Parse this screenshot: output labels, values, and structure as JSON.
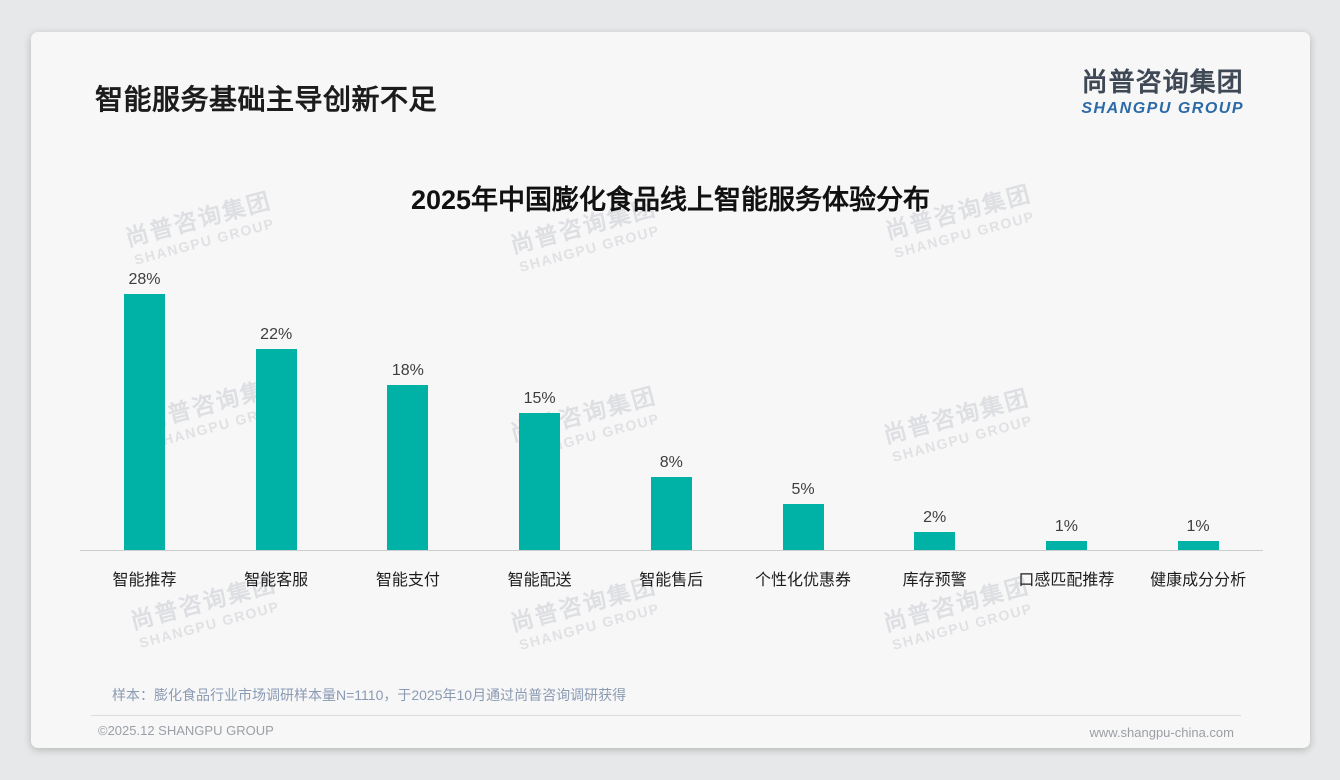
{
  "page": {
    "title": "智能服务基础主导创新不足",
    "logo": {
      "cn": "尚普咨询集团",
      "en": "SHANGPU GROUP"
    },
    "watermark": {
      "cn": "尚普咨询集团",
      "en": "SHANGPU GROUP"
    },
    "footer": {
      "note": "样本：膨化食品行业市场调研样本量N=1110，于2025年10月通过尚普咨询调研获得",
      "copyright": "©2025.12 SHANGPU GROUP",
      "website": "www.shangpu-china.com"
    },
    "colors": {
      "bar_teal": "#00b1a6",
      "logo_blue": "#2b6aa6",
      "note_blue_gray": "#8a9ab2"
    }
  },
  "chart_data": {
    "type": "bar",
    "title": "2025年中国膨化食品线上智能服务体验分布",
    "categories": [
      "智能推荐",
      "智能客服",
      "智能支付",
      "智能配送",
      "智能售后",
      "个性化优惠券",
      "库存预警",
      "口感匹配推荐",
      "健康成分分析"
    ],
    "values": [
      28,
      22,
      18,
      15,
      8,
      5,
      2,
      1,
      1
    ],
    "value_labels": [
      "28%",
      "22%",
      "18%",
      "15%",
      "8%",
      "5%",
      "2%",
      "1%",
      "1%"
    ],
    "unit": "%",
    "xlabel": "",
    "ylabel": "",
    "ylim": [
      0,
      30
    ],
    "grid": false,
    "legend": false,
    "bar_color": "#00b1a6"
  }
}
